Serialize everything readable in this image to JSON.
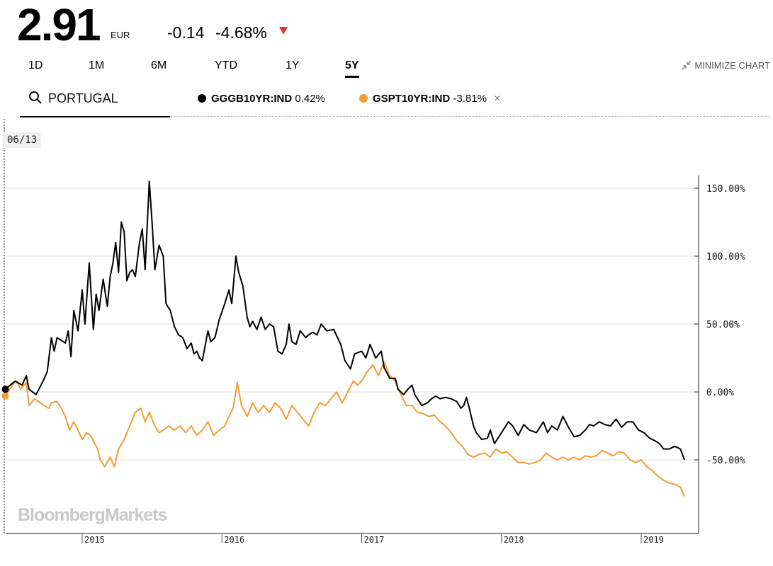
{
  "quote": {
    "price": "2.91",
    "currency": "EUR",
    "change": "-0.14",
    "change_pct": "-4.68%"
  },
  "ranges": [
    {
      "label": "1D",
      "active": false
    },
    {
      "label": "1M",
      "active": false
    },
    {
      "label": "6M",
      "active": false
    },
    {
      "label": "YTD",
      "active": false
    },
    {
      "label": "1Y",
      "active": false
    },
    {
      "label": "5Y",
      "active": true
    }
  ],
  "minimize_label": "MINIMIZE CHART",
  "search": {
    "value": "PORTUGAL",
    "placeholder": ""
  },
  "legend": [
    {
      "ticker": "GGGB10YR:IND",
      "value": "0.42%",
      "color": "#000000",
      "removable": false
    },
    {
      "ticker": "GSPT10YR:IND",
      "value": "-3.81%",
      "color": "#f39c32",
      "removable": true
    }
  ],
  "crosshair_date": "06/13",
  "watermark": "BloombergMarkets",
  "chart_data": {
    "type": "line",
    "x_unit": "year",
    "y_unit": "percent change",
    "xlim": [
      2014.45,
      2019.4
    ],
    "ylim": [
      -100,
      170
    ],
    "y_ticks": [
      150,
      100,
      50,
      0,
      -50
    ],
    "y_tick_labels": [
      "150.00%",
      "100.00%",
      "50.00%",
      "0.00%",
      "-50.00%"
    ],
    "x_ticks": [
      2015,
      2016,
      2017,
      2018,
      2019
    ],
    "x_tick_labels": [
      "2015",
      "2016",
      "2017",
      "2018",
      "2019"
    ],
    "grid": true,
    "series": [
      {
        "name": "GGGB10YR:IND",
        "color": "#000000",
        "points": [
          [
            2014.45,
            2
          ],
          [
            2014.52,
            8
          ],
          [
            2014.57,
            5
          ],
          [
            2014.6,
            12
          ],
          [
            2014.62,
            2
          ],
          [
            2014.67,
            -2
          ],
          [
            2014.72,
            8
          ],
          [
            2014.75,
            15
          ],
          [
            2014.78,
            40
          ],
          [
            2014.8,
            30
          ],
          [
            2014.82,
            40
          ],
          [
            2014.88,
            36
          ],
          [
            2014.9,
            45
          ],
          [
            2014.92,
            26
          ],
          [
            2014.94,
            60
          ],
          [
            2014.97,
            45
          ],
          [
            2015.0,
            75
          ],
          [
            2015.02,
            50
          ],
          [
            2015.05,
            95
          ],
          [
            2015.08,
            46
          ],
          [
            2015.1,
            72
          ],
          [
            2015.12,
            60
          ],
          [
            2015.15,
            83
          ],
          [
            2015.18,
            63
          ],
          [
            2015.2,
            85
          ],
          [
            2015.22,
            95
          ],
          [
            2015.24,
            110
          ],
          [
            2015.26,
            88
          ],
          [
            2015.28,
            125
          ],
          [
            2015.3,
            118
          ],
          [
            2015.32,
            82
          ],
          [
            2015.34,
            88
          ],
          [
            2015.36,
            90
          ],
          [
            2015.38,
            85
          ],
          [
            2015.41,
            110
          ],
          [
            2015.43,
            120
          ],
          [
            2015.45,
            90
          ],
          [
            2015.48,
            155
          ],
          [
            2015.5,
            125
          ],
          [
            2015.52,
            90
          ],
          [
            2015.55,
            108
          ],
          [
            2015.58,
            100
          ],
          [
            2015.6,
            65
          ],
          [
            2015.63,
            60
          ],
          [
            2015.66,
            48
          ],
          [
            2015.69,
            42
          ],
          [
            2015.72,
            40
          ],
          [
            2015.75,
            32
          ],
          [
            2015.78,
            36
          ],
          [
            2015.8,
            28
          ],
          [
            2015.82,
            30
          ],
          [
            2015.84,
            25
          ],
          [
            2015.86,
            23
          ],
          [
            2015.9,
            45
          ],
          [
            2015.92,
            37
          ],
          [
            2015.95,
            40
          ],
          [
            2015.98,
            53
          ],
          [
            2016.02,
            65
          ],
          [
            2016.05,
            75
          ],
          [
            2016.07,
            65
          ],
          [
            2016.1,
            100
          ],
          [
            2016.12,
            88
          ],
          [
            2016.15,
            78
          ],
          [
            2016.18,
            55
          ],
          [
            2016.2,
            48
          ],
          [
            2016.22,
            52
          ],
          [
            2016.25,
            46
          ],
          [
            2016.28,
            55
          ],
          [
            2016.31,
            46
          ],
          [
            2016.34,
            50
          ],
          [
            2016.37,
            48
          ],
          [
            2016.4,
            30
          ],
          [
            2016.43,
            28
          ],
          [
            2016.46,
            35
          ],
          [
            2016.48,
            50
          ],
          [
            2016.5,
            37
          ],
          [
            2016.53,
            35
          ],
          [
            2016.56,
            45
          ],
          [
            2016.6,
            40
          ],
          [
            2016.62,
            42
          ],
          [
            2016.65,
            44
          ],
          [
            2016.68,
            42
          ],
          [
            2016.71,
            50
          ],
          [
            2016.75,
            45
          ],
          [
            2016.8,
            46
          ],
          [
            2016.85,
            35
          ],
          [
            2016.88,
            23
          ],
          [
            2016.92,
            17
          ],
          [
            2016.95,
            28
          ],
          [
            2017.0,
            30
          ],
          [
            2017.03,
            25
          ],
          [
            2017.06,
            35
          ],
          [
            2017.1,
            25
          ],
          [
            2017.14,
            30
          ],
          [
            2017.16,
            18
          ],
          [
            2017.2,
            10
          ],
          [
            2017.24,
            10
          ],
          [
            2017.26,
            2
          ],
          [
            2017.3,
            -2
          ],
          [
            2017.33,
            2
          ],
          [
            2017.36,
            5
          ],
          [
            2017.38,
            -2
          ],
          [
            2017.43,
            -10
          ],
          [
            2017.47,
            -8
          ],
          [
            2017.5,
            -5
          ],
          [
            2017.53,
            -3
          ],
          [
            2017.56,
            -5
          ],
          [
            2017.6,
            -4
          ],
          [
            2017.64,
            -5
          ],
          [
            2017.68,
            -7
          ],
          [
            2017.71,
            -12
          ],
          [
            2017.73,
            -10
          ],
          [
            2017.75,
            -4
          ],
          [
            2017.77,
            -12
          ],
          [
            2017.8,
            -25
          ],
          [
            2017.82,
            -30
          ],
          [
            2017.86,
            -35
          ],
          [
            2017.9,
            -34
          ],
          [
            2017.92,
            -28
          ],
          [
            2017.95,
            -38
          ],
          [
            2018.0,
            -30
          ],
          [
            2018.05,
            -22
          ],
          [
            2018.08,
            -25
          ],
          [
            2018.12,
            -32
          ],
          [
            2018.16,
            -24
          ],
          [
            2018.2,
            -28
          ],
          [
            2018.25,
            -30
          ],
          [
            2018.3,
            -22
          ],
          [
            2018.33,
            -30
          ],
          [
            2018.36,
            -25
          ],
          [
            2018.4,
            -28
          ],
          [
            2018.44,
            -18
          ],
          [
            2018.48,
            -26
          ],
          [
            2018.52,
            -33
          ],
          [
            2018.56,
            -32
          ],
          [
            2018.6,
            -28
          ],
          [
            2018.63,
            -24
          ],
          [
            2018.66,
            -25
          ],
          [
            2018.7,
            -22
          ],
          [
            2018.74,
            -24
          ],
          [
            2018.78,
            -25
          ],
          [
            2018.82,
            -20
          ],
          [
            2018.86,
            -26
          ],
          [
            2018.9,
            -22
          ],
          [
            2018.94,
            -22
          ],
          [
            2018.98,
            -28
          ],
          [
            2019.02,
            -30
          ],
          [
            2019.06,
            -34
          ],
          [
            2019.1,
            -36
          ],
          [
            2019.13,
            -38
          ],
          [
            2019.16,
            -42
          ],
          [
            2019.2,
            -42
          ],
          [
            2019.24,
            -40
          ],
          [
            2019.28,
            -42
          ],
          [
            2019.31,
            -50
          ]
        ]
      },
      {
        "name": "GSPT10YR:IND",
        "color": "#f39c32",
        "points": [
          [
            2014.45,
            -3
          ],
          [
            2014.5,
            5
          ],
          [
            2014.53,
            8
          ],
          [
            2014.56,
            2
          ],
          [
            2014.6,
            7
          ],
          [
            2014.62,
            -10
          ],
          [
            2014.66,
            -5
          ],
          [
            2014.7,
            -8
          ],
          [
            2014.73,
            -10
          ],
          [
            2014.76,
            -12
          ],
          [
            2014.78,
            -8
          ],
          [
            2014.82,
            -7
          ],
          [
            2014.85,
            -12
          ],
          [
            2014.88,
            -18
          ],
          [
            2014.91,
            -28
          ],
          [
            2014.94,
            -22
          ],
          [
            2014.97,
            -28
          ],
          [
            2015.0,
            -35
          ],
          [
            2015.03,
            -30
          ],
          [
            2015.06,
            -32
          ],
          [
            2015.09,
            -38
          ],
          [
            2015.11,
            -42
          ],
          [
            2015.13,
            -50
          ],
          [
            2015.16,
            -55
          ],
          [
            2015.2,
            -48
          ],
          [
            2015.23,
            -55
          ],
          [
            2015.26,
            -42
          ],
          [
            2015.3,
            -35
          ],
          [
            2015.34,
            -25
          ],
          [
            2015.38,
            -15
          ],
          [
            2015.42,
            -12
          ],
          [
            2015.45,
            -22
          ],
          [
            2015.48,
            -15
          ],
          [
            2015.52,
            -25
          ],
          [
            2015.55,
            -30
          ],
          [
            2015.58,
            -28
          ],
          [
            2015.62,
            -25
          ],
          [
            2015.66,
            -28
          ],
          [
            2015.7,
            -25
          ],
          [
            2015.74,
            -30
          ],
          [
            2015.78,
            -25
          ],
          [
            2015.82,
            -32
          ],
          [
            2015.86,
            -28
          ],
          [
            2015.9,
            -22
          ],
          [
            2015.94,
            -32
          ],
          [
            2015.98,
            -28
          ],
          [
            2016.02,
            -25
          ],
          [
            2016.05,
            -18
          ],
          [
            2016.08,
            -12
          ],
          [
            2016.11,
            7
          ],
          [
            2016.14,
            -10
          ],
          [
            2016.18,
            -18
          ],
          [
            2016.22,
            -8
          ],
          [
            2016.26,
            -15
          ],
          [
            2016.3,
            -10
          ],
          [
            2016.34,
            -15
          ],
          [
            2016.38,
            -8
          ],
          [
            2016.42,
            -12
          ],
          [
            2016.46,
            -20
          ],
          [
            2016.5,
            -10
          ],
          [
            2016.54,
            -15
          ],
          [
            2016.58,
            -20
          ],
          [
            2016.62,
            -25
          ],
          [
            2016.66,
            -15
          ],
          [
            2016.7,
            -8
          ],
          [
            2016.74,
            -10
          ],
          [
            2016.78,
            -5
          ],
          [
            2016.82,
            0
          ],
          [
            2016.86,
            -8
          ],
          [
            2016.9,
            0
          ],
          [
            2016.94,
            8
          ],
          [
            2016.97,
            5
          ],
          [
            2017.0,
            8
          ],
          [
            2017.04,
            15
          ],
          [
            2017.08,
            20
          ],
          [
            2017.12,
            12
          ],
          [
            2017.16,
            22
          ],
          [
            2017.2,
            12
          ],
          [
            2017.24,
            8
          ],
          [
            2017.28,
            -2
          ],
          [
            2017.32,
            -10
          ],
          [
            2017.36,
            -10
          ],
          [
            2017.4,
            -15
          ],
          [
            2017.44,
            -16
          ],
          [
            2017.48,
            -18
          ],
          [
            2017.52,
            -17
          ],
          [
            2017.56,
            -22
          ],
          [
            2017.6,
            -25
          ],
          [
            2017.64,
            -30
          ],
          [
            2017.68,
            -36
          ],
          [
            2017.72,
            -40
          ],
          [
            2017.76,
            -46
          ],
          [
            2017.8,
            -48
          ],
          [
            2017.84,
            -46
          ],
          [
            2017.88,
            -45
          ],
          [
            2017.92,
            -48
          ],
          [
            2017.96,
            -42
          ],
          [
            2018.0,
            -45
          ],
          [
            2018.04,
            -44
          ],
          [
            2018.08,
            -48
          ],
          [
            2018.12,
            -52
          ],
          [
            2018.16,
            -52
          ],
          [
            2018.2,
            -53
          ],
          [
            2018.24,
            -52
          ],
          [
            2018.28,
            -50
          ],
          [
            2018.32,
            -45
          ],
          [
            2018.36,
            -48
          ],
          [
            2018.4,
            -50
          ],
          [
            2018.44,
            -48
          ],
          [
            2018.48,
            -50
          ],
          [
            2018.52,
            -48
          ],
          [
            2018.56,
            -50
          ],
          [
            2018.6,
            -47
          ],
          [
            2018.64,
            -48
          ],
          [
            2018.68,
            -47
          ],
          [
            2018.72,
            -43
          ],
          [
            2018.76,
            -45
          ],
          [
            2018.8,
            -47
          ],
          [
            2018.84,
            -44
          ],
          [
            2018.88,
            -45
          ],
          [
            2018.92,
            -50
          ],
          [
            2018.96,
            -52
          ],
          [
            2019.0,
            -50
          ],
          [
            2019.04,
            -55
          ],
          [
            2019.08,
            -58
          ],
          [
            2019.12,
            -62
          ],
          [
            2019.16,
            -65
          ],
          [
            2019.2,
            -67
          ],
          [
            2019.24,
            -68
          ],
          [
            2019.28,
            -70
          ],
          [
            2019.31,
            -77
          ]
        ]
      }
    ]
  }
}
